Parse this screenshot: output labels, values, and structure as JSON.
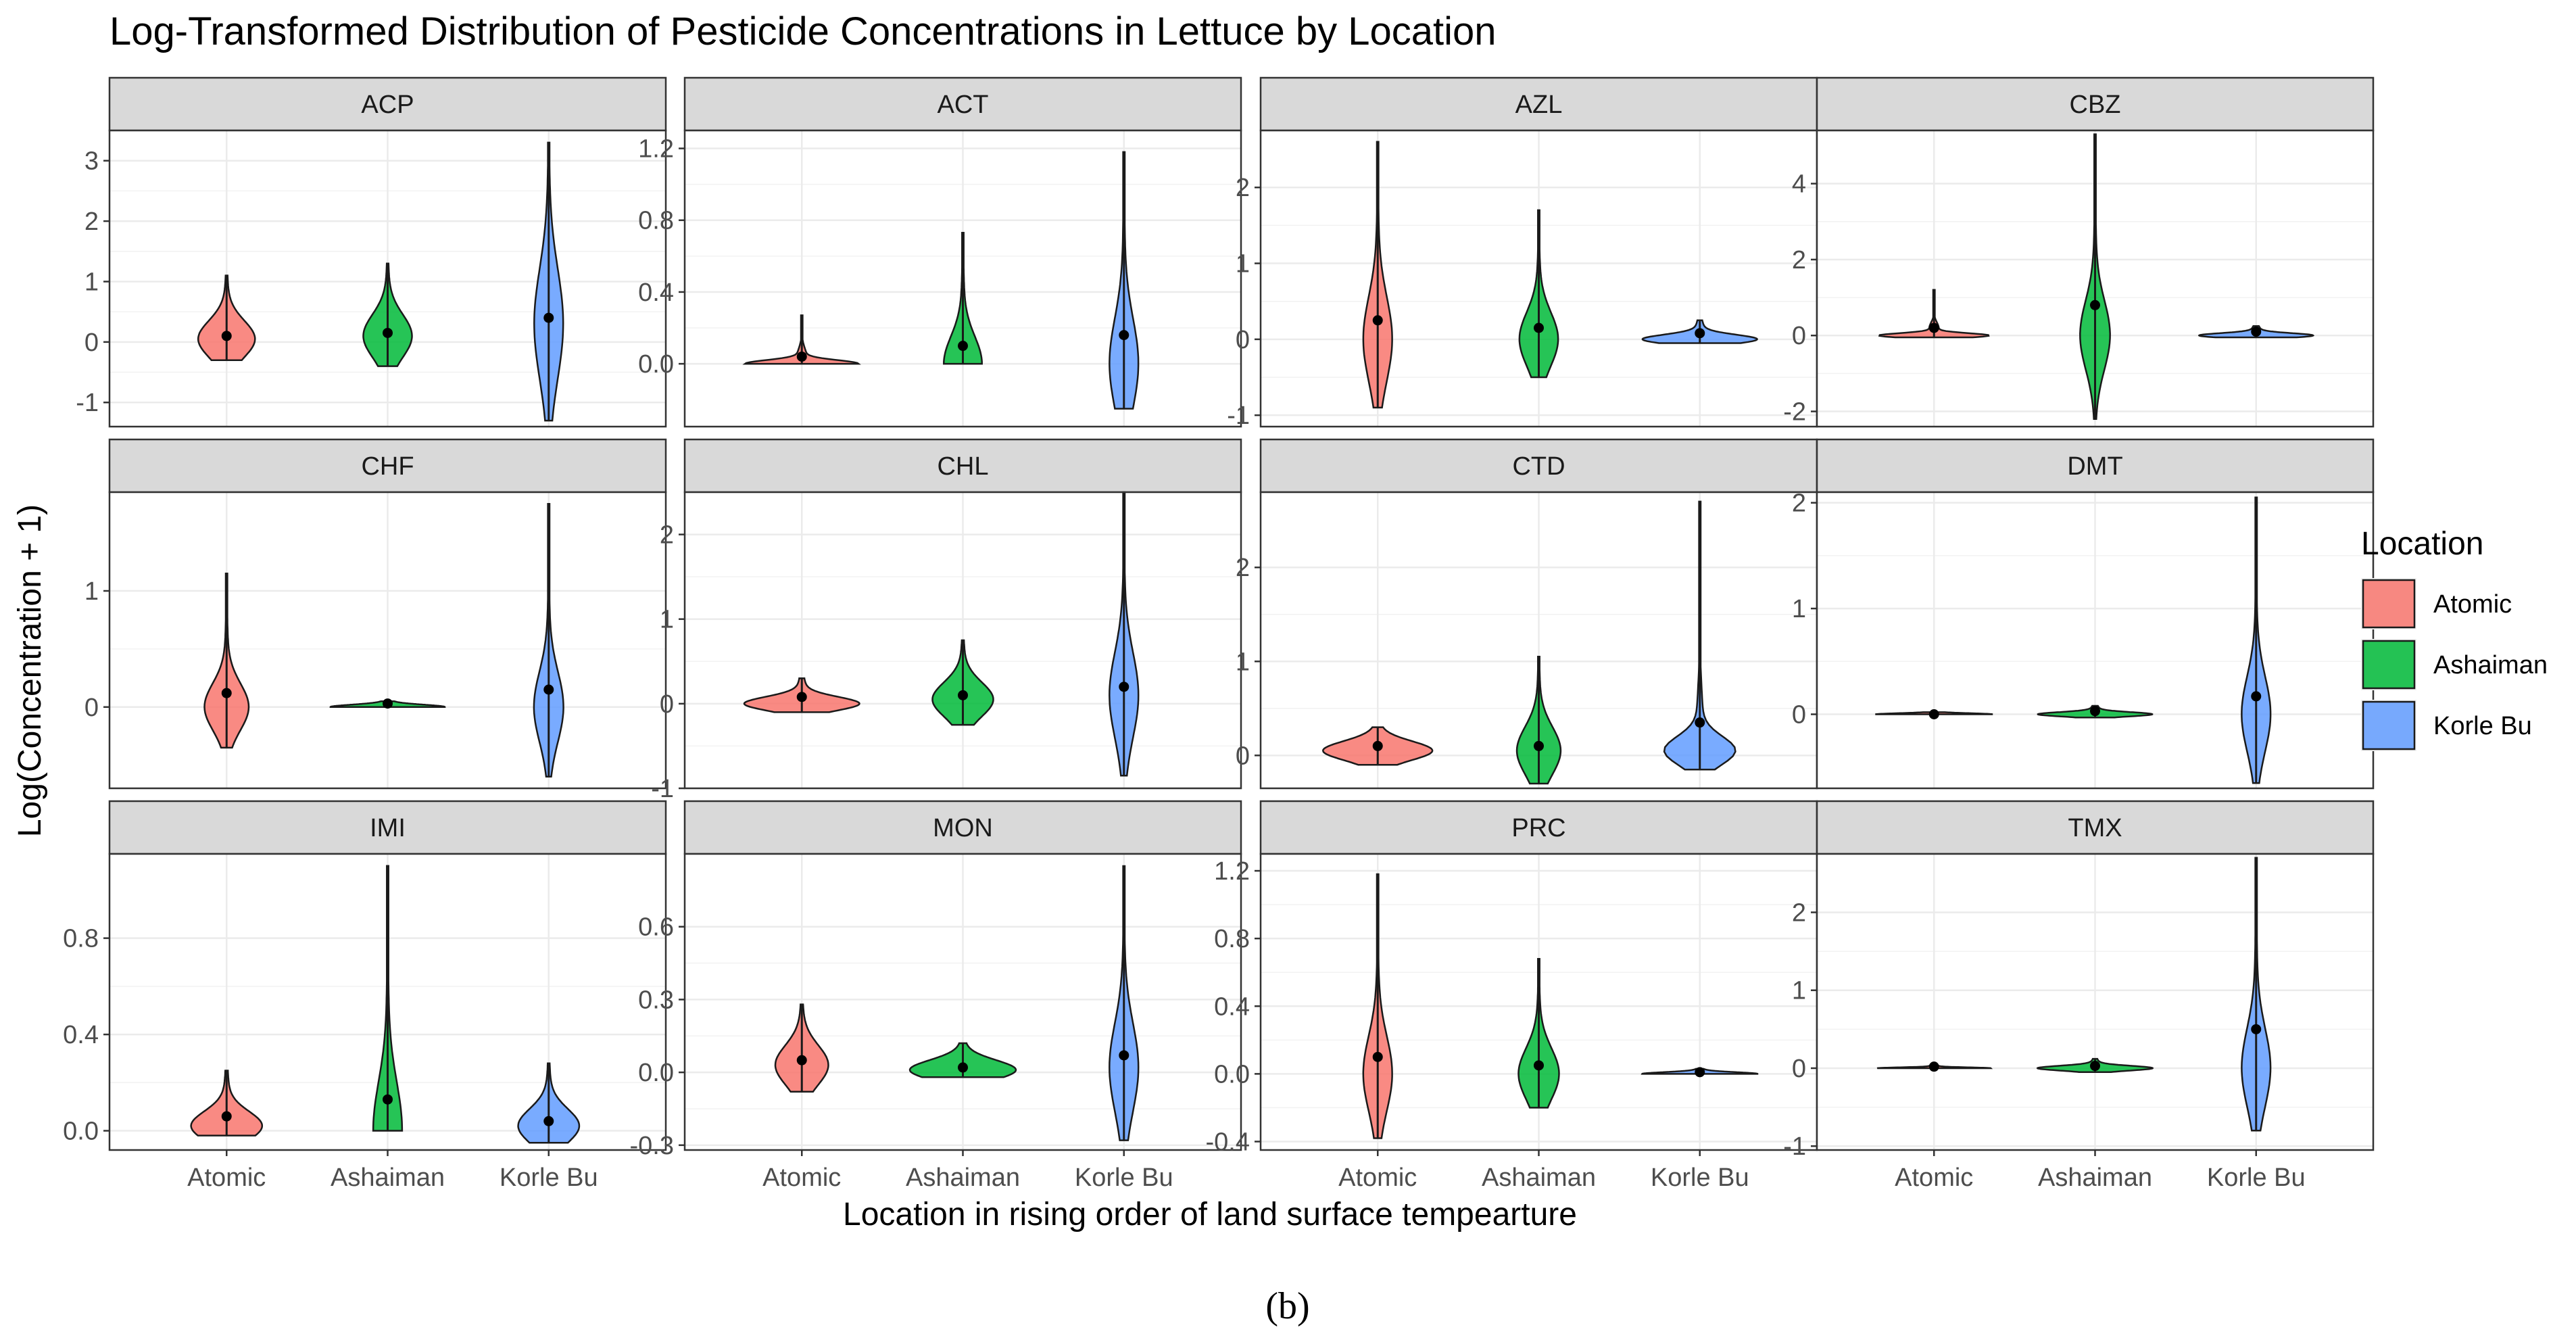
{
  "chart_data": {
    "type": "violin",
    "title": "Log-Transformed Distribution of Pesticide Concentrations in Lettuce by Location",
    "xlabel": "Location in rising order of land surface tempearture",
    "ylabel": "Log(Concentration + 1)",
    "caption": "(b)",
    "categories": [
      "Atomic",
      "Ashaiman",
      "Korle Bu"
    ],
    "legend": {
      "title": "Location",
      "position": "right",
      "entries": [
        {
          "name": "Atomic",
          "color": "#F8766D"
        },
        {
          "name": "Ashaiman",
          "color": "#00BA38"
        },
        {
          "name": "Korle Bu",
          "color": "#619CFF"
        }
      ]
    },
    "panels": [
      {
        "name": "ACP",
        "ylim": [
          -1.4,
          3.5
        ],
        "yticks": [
          -1,
          0,
          1,
          2,
          3
        ],
        "ytick_labels": [
          "-1",
          "0",
          "1",
          "2",
          "3"
        ],
        "groups": [
          {
            "min": -0.3,
            "max": 1.1,
            "mean": 0.1,
            "mode": 0.05,
            "spread": 0.3
          },
          {
            "min": -0.4,
            "max": 1.3,
            "mean": 0.15,
            "mode": 0.1,
            "spread": 0.35
          },
          {
            "min": -1.3,
            "max": 3.3,
            "mean": 0.4,
            "mode": 0.3,
            "spread": 0.9
          }
        ]
      },
      {
        "name": "ACT",
        "ylim": [
          -0.35,
          1.3
        ],
        "yticks": [
          0.0,
          0.4,
          0.8,
          1.2
        ],
        "ytick_labels": [
          "0.0",
          "0.4",
          "0.8",
          "1.2"
        ],
        "groups": [
          {
            "min": 0.0,
            "max": 0.27,
            "mean": 0.04,
            "mode": 0.0,
            "spread": 0.02
          },
          {
            "min": 0.0,
            "max": 0.73,
            "mean": 0.1,
            "mode": 0.0,
            "spread": 0.15
          },
          {
            "min": -0.25,
            "max": 1.18,
            "mean": 0.16,
            "mode": 0.0,
            "spread": 0.25
          }
        ]
      },
      {
        "name": "AZL",
        "ylim": [
          -1.15,
          2.75
        ],
        "yticks": [
          -1,
          0,
          1,
          2
        ],
        "ytick_labels": [
          "-1",
          "0",
          "1",
          "2"
        ],
        "groups": [
          {
            "min": -0.9,
            "max": 2.6,
            "mean": 0.25,
            "mode": 0.0,
            "spread": 0.55
          },
          {
            "min": -0.5,
            "max": 1.7,
            "mean": 0.15,
            "mode": 0.0,
            "spread": 0.35
          },
          {
            "min": -0.05,
            "max": 0.25,
            "mean": 0.08,
            "mode": 0.0,
            "spread": 0.06
          }
        ]
      },
      {
        "name": "CBZ",
        "ylim": [
          -2.4,
          5.4
        ],
        "yticks": [
          -2,
          0,
          2,
          4
        ],
        "ytick_labels": [
          "-2",
          "0",
          "2",
          "4"
        ],
        "groups": [
          {
            "min": -0.05,
            "max": 1.2,
            "mean": 0.2,
            "mode": 0.0,
            "spread": 0.06
          },
          {
            "min": -2.2,
            "max": 5.3,
            "mean": 0.8,
            "mode": 0.0,
            "spread": 0.9
          },
          {
            "min": -0.05,
            "max": 0.25,
            "mean": 0.1,
            "mode": 0.0,
            "spread": 0.06
          }
        ]
      },
      {
        "name": "CHF",
        "ylim": [
          -0.7,
          1.85
        ],
        "yticks": [
          0,
          1
        ],
        "ytick_labels": [
          "0",
          "1"
        ],
        "groups": [
          {
            "min": -0.35,
            "max": 1.15,
            "mean": 0.12,
            "mode": 0.0,
            "spread": 0.2
          },
          {
            "min": 0.0,
            "max": 0.05,
            "mean": 0.03,
            "mode": 0.0,
            "spread": 0.02
          },
          {
            "min": -0.6,
            "max": 1.75,
            "mean": 0.15,
            "mode": 0.0,
            "spread": 0.3
          }
        ]
      },
      {
        "name": "CHL",
        "ylim": [
          -1.0,
          2.5
        ],
        "yticks": [
          -1,
          0,
          1,
          2
        ],
        "ytick_labels": [
          "-1",
          "0",
          "1",
          "2"
        ],
        "groups": [
          {
            "min": -0.1,
            "max": 0.3,
            "mean": 0.08,
            "mode": 0.0,
            "spread": 0.08
          },
          {
            "min": -0.25,
            "max": 0.75,
            "mean": 0.1,
            "mode": 0.05,
            "spread": 0.2
          },
          {
            "min": -0.85,
            "max": 2.5,
            "mean": 0.2,
            "mode": 0.1,
            "spread": 0.5
          }
        ]
      },
      {
        "name": "CTD",
        "ylim": [
          -0.35,
          2.8
        ],
        "yticks": [
          0,
          1,
          2
        ],
        "ytick_labels": [
          "0",
          "1",
          "2"
        ],
        "groups": [
          {
            "min": -0.1,
            "max": 0.3,
            "mean": 0.1,
            "mode": 0.05,
            "spread": 0.1
          },
          {
            "min": -0.3,
            "max": 1.05,
            "mean": 0.1,
            "mode": 0.05,
            "spread": 0.25
          },
          {
            "min": -0.15,
            "max": 2.7,
            "mean": 0.35,
            "mode": 0.05,
            "spread": 0.15
          }
        ]
      },
      {
        "name": "DMT",
        "ylim": [
          -0.7,
          2.1
        ],
        "yticks": [
          0,
          1,
          2
        ],
        "ytick_labels": [
          "0",
          "1",
          "2"
        ],
        "groups": [
          {
            "min": 0.0,
            "max": 0.02,
            "mean": 0.0,
            "mode": 0.0,
            "spread": 0.01
          },
          {
            "min": -0.03,
            "max": 0.08,
            "mean": 0.03,
            "mode": 0.0,
            "spread": 0.02
          },
          {
            "min": -0.65,
            "max": 2.05,
            "mean": 0.17,
            "mode": 0.0,
            "spread": 0.35
          }
        ]
      },
      {
        "name": "IMI",
        "ylim": [
          -0.08,
          1.15
        ],
        "yticks": [
          0.0,
          0.4,
          0.8
        ],
        "ytick_labels": [
          "0.0",
          "0.4",
          "0.8"
        ],
        "groups": [
          {
            "min": -0.02,
            "max": 0.25,
            "mean": 0.06,
            "mode": 0.02,
            "spread": 0.06
          },
          {
            "min": 0.0,
            "max": 1.1,
            "mean": 0.13,
            "mode": 0.0,
            "spread": 0.2
          },
          {
            "min": -0.05,
            "max": 0.28,
            "mean": 0.04,
            "mode": 0.02,
            "spread": 0.07
          }
        ]
      },
      {
        "name": "MON",
        "ylim": [
          -0.32,
          0.9
        ],
        "yticks": [
          -0.3,
          0.0,
          0.3,
          0.6
        ],
        "ytick_labels": [
          "-0.3",
          "0.0",
          "0.3",
          "0.6"
        ],
        "groups": [
          {
            "min": -0.08,
            "max": 0.28,
            "mean": 0.05,
            "mode": 0.03,
            "spread": 0.08
          },
          {
            "min": -0.02,
            "max": 0.12,
            "mean": 0.02,
            "mode": 0.01,
            "spread": 0.04
          },
          {
            "min": -0.28,
            "max": 0.85,
            "mean": 0.07,
            "mode": 0.02,
            "spread": 0.18
          }
        ]
      },
      {
        "name": "PRC",
        "ylim": [
          -0.45,
          1.3
        ],
        "yticks": [
          -0.4,
          0.0,
          0.4,
          0.8,
          1.2
        ],
        "ytick_labels": [
          "-0.4",
          "0.0",
          "0.4",
          "0.8",
          "1.2"
        ],
        "groups": [
          {
            "min": -0.38,
            "max": 1.18,
            "mean": 0.1,
            "mode": 0.0,
            "spread": 0.22
          },
          {
            "min": -0.2,
            "max": 0.68,
            "mean": 0.05,
            "mode": 0.0,
            "spread": 0.15
          },
          {
            "min": 0.0,
            "max": 0.03,
            "mean": 0.01,
            "mode": 0.0,
            "spread": 0.01
          }
        ]
      },
      {
        "name": "TMX",
        "ylim": [
          -1.05,
          2.75
        ],
        "yticks": [
          -1,
          0,
          1,
          2
        ],
        "ytick_labels": [
          "-1",
          "0",
          "1",
          "2"
        ],
        "groups": [
          {
            "min": 0.0,
            "max": 0.05,
            "mean": 0.02,
            "mode": 0.0,
            "spread": 0.01
          },
          {
            "min": -0.05,
            "max": 0.12,
            "mean": 0.03,
            "mode": 0.0,
            "spread": 0.03
          },
          {
            "min": -0.8,
            "max": 2.7,
            "mean": 0.5,
            "mode": 0.0,
            "spread": 0.5
          }
        ]
      }
    ]
  }
}
